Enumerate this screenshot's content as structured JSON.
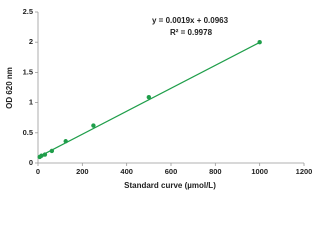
{
  "chart_data": {
    "type": "scatter",
    "x_label": "Standard curve (µmol/L)",
    "y_label": "OD 620 nm",
    "equation": "y = 0.0019x + 0.0963",
    "r_squared": "R² = 0.9978",
    "trendline": {
      "slope": 0.0019,
      "intercept": 0.0963,
      "color": "#1f9e4a"
    },
    "series": [
      {
        "color": "#1f9e4a",
        "x": [
          7.8,
          15.6,
          31.25,
          62.5,
          125,
          250,
          500,
          1000
        ],
        "values": [
          0.1,
          0.12,
          0.14,
          0.2,
          0.36,
          0.62,
          1.09,
          2.0
        ]
      }
    ],
    "xlim": [
      0,
      1200
    ],
    "xticks": [
      0,
      200,
      400,
      600,
      800,
      1000,
      1200
    ],
    "ylim": [
      0,
      2.5
    ],
    "yticks": [
      0,
      0.5,
      1,
      1.5,
      2,
      2.5
    ]
  }
}
